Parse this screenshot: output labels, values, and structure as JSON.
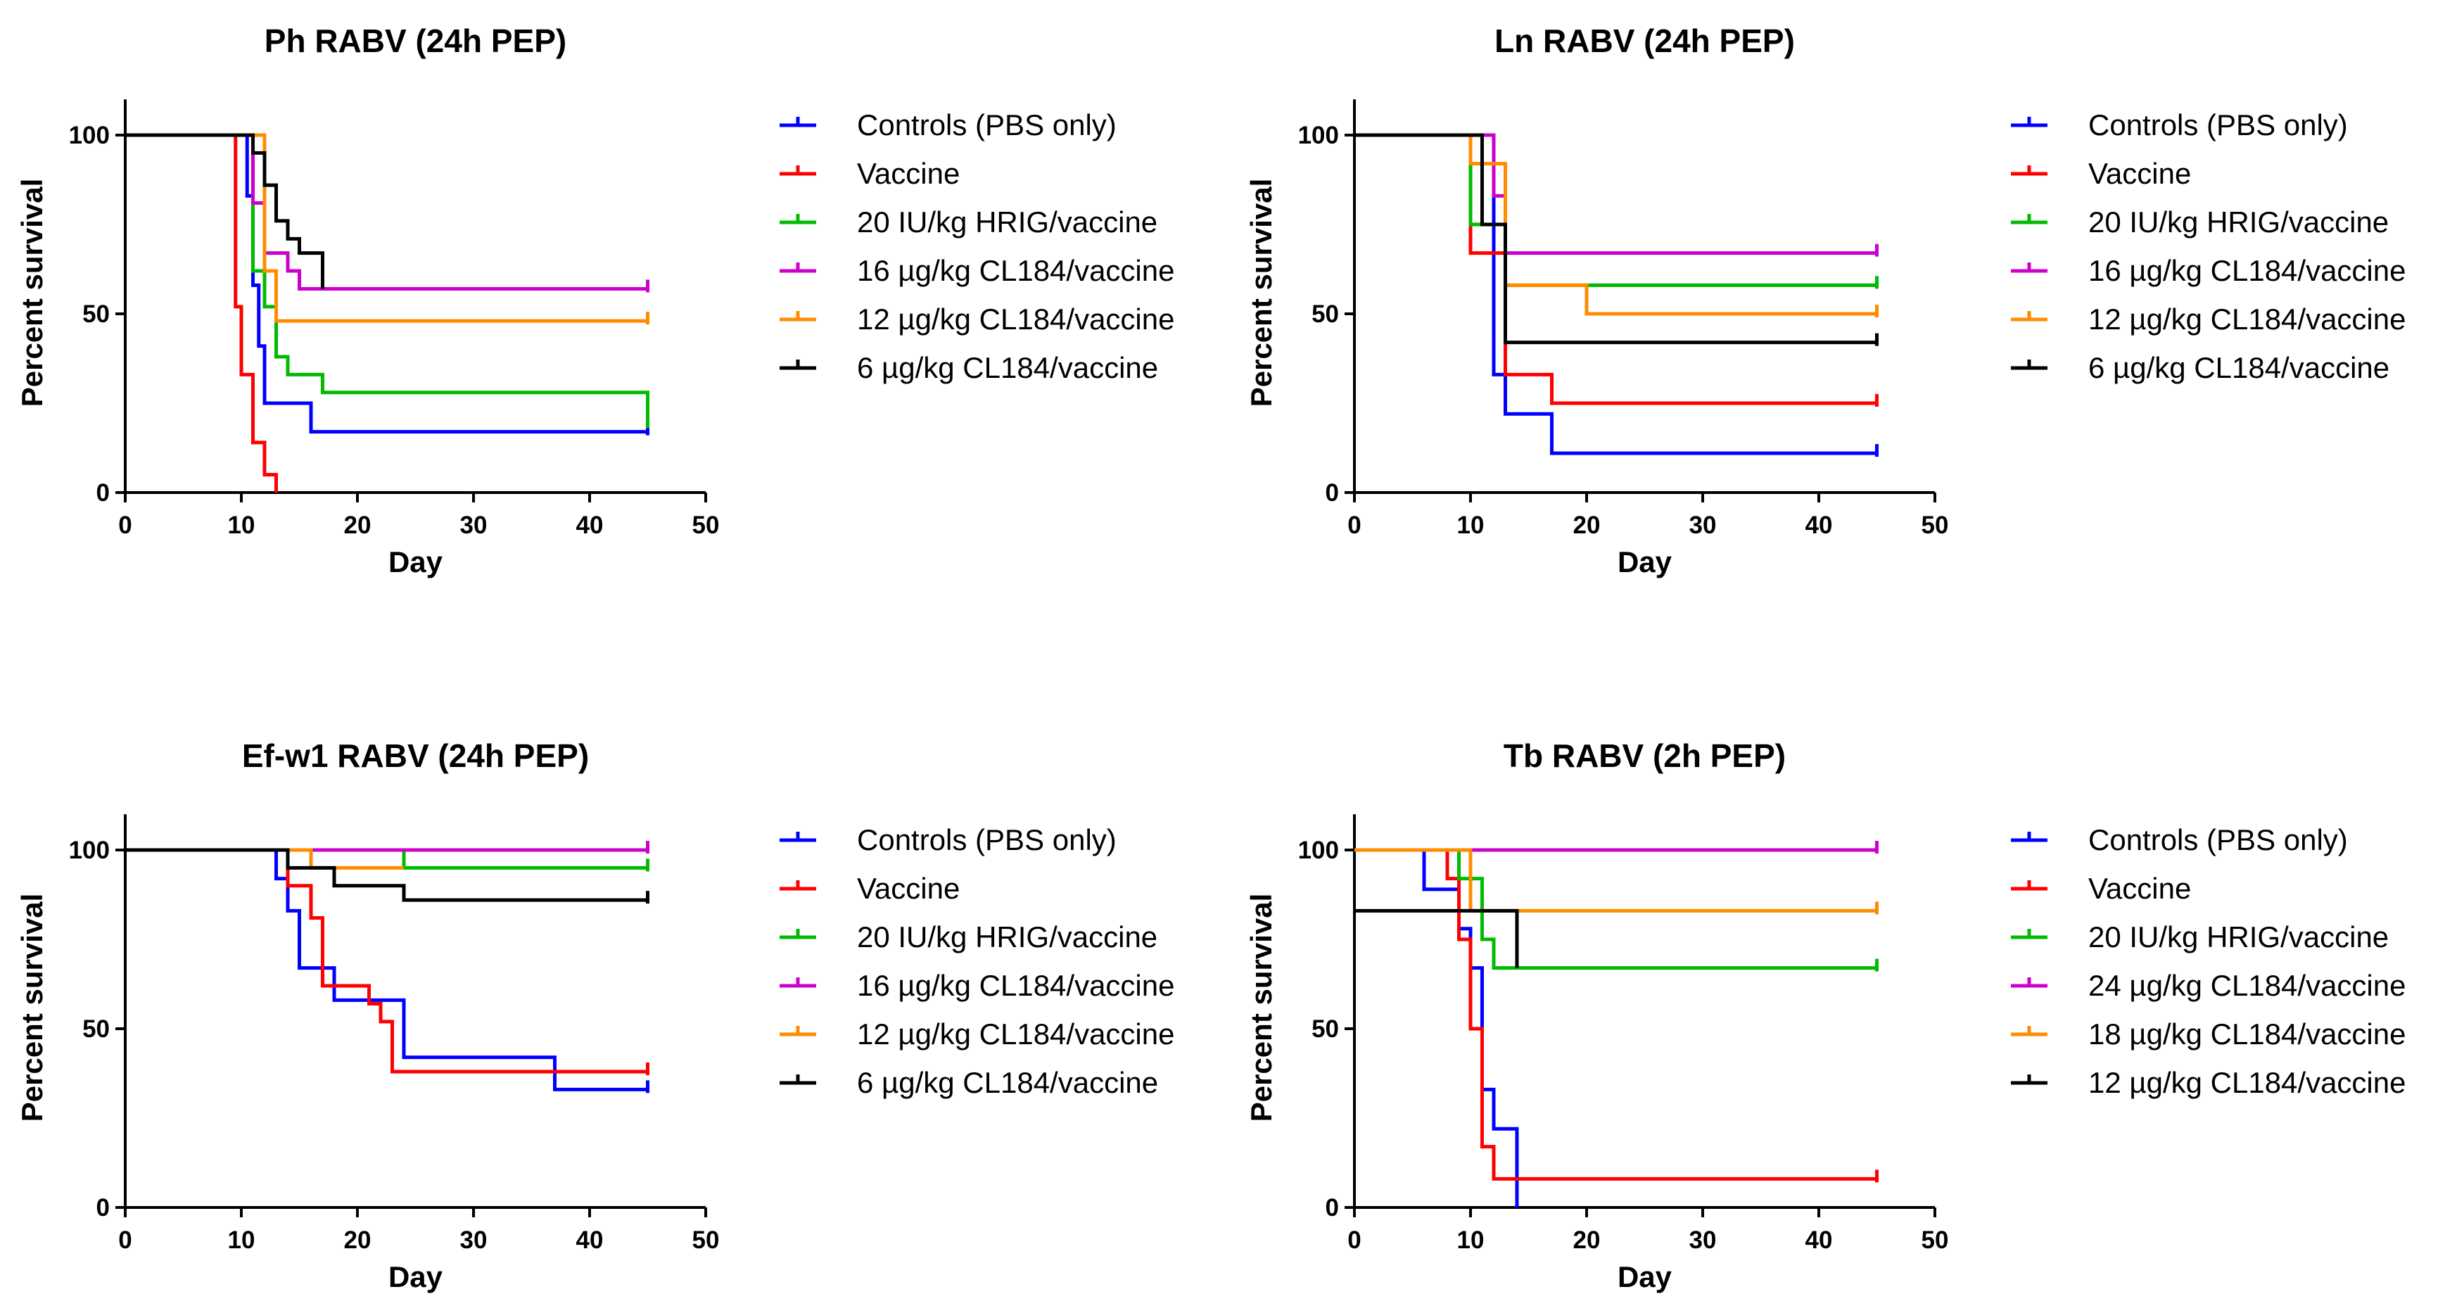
{
  "chart_data": [
    {
      "type": "line",
      "subtype": "kaplan-meier",
      "title": "Ph RABV (24h PEP)",
      "xlabel": "Day",
      "ylabel": "Percent survival",
      "xlim": [
        0,
        50
      ],
      "ylim": [
        0,
        110
      ],
      "xticks": [
        0,
        10,
        20,
        30,
        40,
        50
      ],
      "yticks": [
        0,
        50,
        100
      ],
      "xtick_labels": [
        "0",
        "10",
        "20",
        "30",
        "40",
        "50"
      ],
      "ytick_labels": [
        "0",
        "50",
        "100"
      ],
      "legend_position": "right",
      "series": [
        {
          "name": "Controls (PBS only)",
          "color": "#0000ff",
          "censor": true,
          "x": [
            0,
            10,
            10.5,
            11,
            11.5,
            12,
            16,
            45
          ],
          "y": [
            100,
            100,
            83,
            58,
            41,
            25,
            17,
            17
          ]
        },
        {
          "name": "Vaccine",
          "color": "#ff0000",
          "censor": false,
          "x": [
            0,
            9,
            9.5,
            10,
            11,
            12,
            13
          ],
          "y": [
            100,
            100,
            52,
            33,
            14,
            5,
            0
          ]
        },
        {
          "name": "20 IU/kg HRIG/vaccine",
          "color": "#00bb00",
          "censor": true,
          "x": [
            0,
            10,
            11,
            12,
            13,
            14,
            17,
            45
          ],
          "y": [
            100,
            100,
            62,
            52,
            38,
            33,
            28,
            19
          ]
        },
        {
          "name": "16 µg/kg CL184/vaccine",
          "color": "#cc00cc",
          "censor": true,
          "x": [
            0,
            10,
            11,
            12,
            14,
            15,
            45
          ],
          "y": [
            100,
            100,
            81,
            67,
            62,
            57,
            57
          ]
        },
        {
          "name": "12 µg/kg CL184/vaccine",
          "color": "#ff8c00",
          "censor": true,
          "x": [
            0,
            11,
            12,
            13,
            45
          ],
          "y": [
            100,
            100,
            62,
            48,
            48
          ]
        },
        {
          "name": "6 µg/kg CL184/vaccine",
          "color": "#000000",
          "censor": false,
          "x": [
            0,
            11,
            12,
            13,
            14,
            15,
            17
          ],
          "y": [
            100,
            95,
            86,
            76,
            71,
            67,
            57
          ]
        }
      ]
    },
    {
      "type": "line",
      "subtype": "kaplan-meier",
      "title": "Ln RABV (24h PEP)",
      "xlabel": "Day",
      "ylabel": "Percent survival",
      "xlim": [
        0,
        50
      ],
      "ylim": [
        0,
        110
      ],
      "xticks": [
        0,
        10,
        20,
        30,
        40,
        50
      ],
      "yticks": [
        0,
        50,
        100
      ],
      "xtick_labels": [
        "0",
        "10",
        "20",
        "30",
        "40",
        "50"
      ],
      "ytick_labels": [
        "0",
        "50",
        "100"
      ],
      "legend_position": "right",
      "series": [
        {
          "name": "Controls (PBS only)",
          "color": "#0000ff",
          "censor": true,
          "x": [
            0,
            10,
            12,
            13,
            17,
            45
          ],
          "y": [
            100,
            100,
            33,
            22,
            11,
            11
          ]
        },
        {
          "name": "Vaccine",
          "color": "#ff0000",
          "censor": true,
          "x": [
            0,
            10,
            13,
            17,
            45
          ],
          "y": [
            100,
            67,
            33,
            25,
            25
          ]
        },
        {
          "name": "20 IU/kg HRIG/vaccine",
          "color": "#00bb00",
          "censor": true,
          "x": [
            0,
            10,
            13,
            45
          ],
          "y": [
            100,
            75,
            58,
            58
          ]
        },
        {
          "name": "16 µg/kg CL184/vaccine",
          "color": "#cc00cc",
          "censor": true,
          "x": [
            0,
            12,
            13,
            45
          ],
          "y": [
            100,
            83,
            67,
            67
          ]
        },
        {
          "name": "12 µg/kg CL184/vaccine",
          "color": "#ff8c00",
          "censor": true,
          "x": [
            0,
            10,
            13,
            20,
            45
          ],
          "y": [
            100,
            92,
            58,
            50,
            50
          ]
        },
        {
          "name": "6 µg/kg CL184/vaccine",
          "color": "#000000",
          "censor": true,
          "x": [
            0,
            11,
            13,
            45
          ],
          "y": [
            100,
            75,
            42,
            42
          ]
        }
      ]
    },
    {
      "type": "line",
      "subtype": "kaplan-meier",
      "title": "Ef-w1 RABV (24h PEP)",
      "xlabel": "Day",
      "ylabel": "Percent survival",
      "xlim": [
        0,
        50
      ],
      "ylim": [
        0,
        110
      ],
      "xticks": [
        0,
        10,
        20,
        30,
        40,
        50
      ],
      "yticks": [
        0,
        50,
        100
      ],
      "xtick_labels": [
        "0",
        "10",
        "20",
        "30",
        "40",
        "50"
      ],
      "ytick_labels": [
        "0",
        "50",
        "100"
      ],
      "legend_position": "right",
      "series": [
        {
          "name": "Controls (PBS only)",
          "color": "#0000ff",
          "censor": true,
          "x": [
            0,
            13,
            14,
            15,
            17,
            18,
            19,
            24,
            37,
            45
          ],
          "y": [
            100,
            92,
            83,
            67,
            67,
            58,
            58,
            42,
            33,
            33
          ]
        },
        {
          "name": "Vaccine",
          "color": "#ff0000",
          "censor": true,
          "x": [
            0,
            14,
            16,
            17,
            18,
            21,
            22,
            23,
            45
          ],
          "y": [
            100,
            90,
            81,
            62,
            62,
            57,
            52,
            38,
            38
          ]
        },
        {
          "name": "20 IU/kg HRIG/vaccine",
          "color": "#00bb00",
          "censor": true,
          "x": [
            0,
            24,
            45
          ],
          "y": [
            100,
            95,
            95
          ]
        },
        {
          "name": "16 µg/kg CL184/vaccine",
          "color": "#cc00cc",
          "censor": true,
          "x": [
            0,
            45
          ],
          "y": [
            100,
            100
          ]
        },
        {
          "name": "12 µg/kg CL184/vaccine",
          "color": "#ff8c00",
          "censor": false,
          "x": [
            0,
            16,
            24
          ],
          "y": [
            100,
            95,
            95
          ]
        },
        {
          "name": "6 µg/kg CL184/vaccine",
          "color": "#000000",
          "censor": true,
          "x": [
            0,
            14,
            18,
            24,
            45
          ],
          "y": [
            100,
            95,
            90,
            86,
            86
          ]
        }
      ]
    },
    {
      "type": "line",
      "subtype": "kaplan-meier",
      "title": "Tb RABV (2h PEP)",
      "xlabel": "Day",
      "ylabel": "Percent survival",
      "xlim": [
        0,
        50
      ],
      "ylim": [
        0,
        110
      ],
      "xticks": [
        0,
        10,
        20,
        30,
        40,
        50
      ],
      "yticks": [
        0,
        50,
        100
      ],
      "xtick_labels": [
        "0",
        "10",
        "20",
        "30",
        "40",
        "50"
      ],
      "ytick_labels": [
        "0",
        "50",
        "100"
      ],
      "legend_position": "right",
      "series": [
        {
          "name": "Controls (PBS only)",
          "color": "#0000ff",
          "censor": false,
          "x": [
            0,
            6,
            9,
            10,
            11,
            12,
            14
          ],
          "y": [
            100,
            89,
            78,
            67,
            33,
            22,
            0
          ]
        },
        {
          "name": "Vaccine",
          "color": "#ff0000",
          "censor": true,
          "x": [
            0,
            8,
            9,
            10,
            11,
            12,
            45
          ],
          "y": [
            100,
            92,
            75,
            50,
            17,
            8,
            8
          ]
        },
        {
          "name": "20 IU/kg HRIG/vaccine",
          "color": "#00bb00",
          "censor": true,
          "x": [
            0,
            9,
            11,
            12,
            45
          ],
          "y": [
            100,
            92,
            75,
            67,
            67
          ]
        },
        {
          "name": "24 µg/kg CL184/vaccine",
          "color": "#cc00cc",
          "censor": true,
          "x": [
            0,
            45
          ],
          "y": [
            100,
            100
          ]
        },
        {
          "name": "18 µg/kg CL184/vaccine",
          "color": "#ff8c00",
          "censor": true,
          "x": [
            0,
            10,
            45
          ],
          "y": [
            100,
            83,
            83
          ]
        },
        {
          "name": "12 µg/kg CL184/vaccine",
          "color": "#000000",
          "censor": false,
          "x": [
            0,
            14
          ],
          "y": [
            83,
            67
          ]
        }
      ]
    }
  ]
}
